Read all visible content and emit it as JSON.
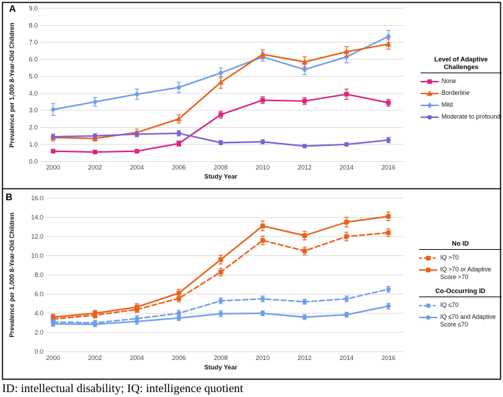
{
  "figure": {
    "panel_a_label": "A",
    "panel_b_label": "B",
    "footnote": "ID: intellectual disability; IQ: intelligence quotient"
  },
  "colors": {
    "grid": "#DBDBDB",
    "border": "#000000",
    "tick_text": "#474747",
    "axis_title": "#161616",
    "magenta": "#D92682",
    "orange": "#E8611A",
    "blue": "#6D9EEB",
    "purple": "#7B61D6"
  },
  "chart_data": [
    {
      "id": "panel-a",
      "type": "line",
      "title": "",
      "xlabel": "Study Year",
      "ylabel": "Prevalence per 1,000 8-Year-Old Children",
      "categories": [
        "2000",
        "2002",
        "2004",
        "2006",
        "2008",
        "2010",
        "2012",
        "2014",
        "2016"
      ],
      "ylim": [
        0.0,
        9.0
      ],
      "y_step": 1.0,
      "grid": true,
      "legend": {
        "position": "right",
        "groups": [
          {
            "title": "Level of Adaptive Challenges",
            "series": [
              0,
              1,
              2,
              3
            ]
          }
        ]
      },
      "series": [
        {
          "name": "None",
          "color": "#D92682",
          "marker": "square",
          "line": "solid",
          "values": [
            0.6,
            0.55,
            0.6,
            1.05,
            2.75,
            3.6,
            3.55,
            3.95,
            3.45
          ],
          "errors": [
            0.1,
            0.1,
            0.1,
            0.15,
            0.2,
            0.2,
            0.2,
            0.3,
            0.2
          ]
        },
        {
          "name": "Borderline",
          "color": "#E8611A",
          "marker": "triangle",
          "line": "solid",
          "values": [
            1.4,
            1.35,
            1.7,
            2.5,
            4.65,
            6.3,
            5.85,
            6.45,
            6.9
          ],
          "errors": [
            0.2,
            0.15,
            0.2,
            0.25,
            0.35,
            0.25,
            0.3,
            0.3,
            0.3
          ]
        },
        {
          "name": "Mild",
          "color": "#6D9EEB",
          "marker": "diamond",
          "line": "solid",
          "values": [
            3.05,
            3.5,
            3.95,
            4.35,
            5.2,
            6.15,
            5.4,
            6.15,
            7.35
          ],
          "errors": [
            0.35,
            0.25,
            0.3,
            0.3,
            0.3,
            0.25,
            0.3,
            0.35,
            0.35
          ]
        },
        {
          "name": "Moderate to profound",
          "color": "#7B61D6",
          "marker": "circle",
          "line": "solid",
          "values": [
            1.45,
            1.5,
            1.6,
            1.65,
            1.1,
            1.15,
            0.9,
            1.0,
            1.25
          ],
          "errors": [
            0.15,
            0.12,
            0.15,
            0.15,
            0.12,
            0.12,
            0.1,
            0.1,
            0.15
          ]
        }
      ]
    },
    {
      "id": "panel-b",
      "type": "line",
      "title": "",
      "xlabel": "Study Year",
      "ylabel": "Prevalence per 1,000 8-Year-Old Children",
      "categories": [
        "2000",
        "2002",
        "2004",
        "2006",
        "2008",
        "2010",
        "2012",
        "2014",
        "2016"
      ],
      "ylim": [
        0.0,
        16.0
      ],
      "y_step": 2.0,
      "grid": true,
      "legend": {
        "position": "right",
        "groups": [
          {
            "title": "No ID",
            "series": [
              0,
              1
            ]
          },
          {
            "title": "Co-Occurring ID",
            "series": [
              2,
              3
            ]
          }
        ]
      },
      "series": [
        {
          "name": "IQ >70",
          "color": "#E8611A",
          "marker": "square",
          "line": "dashed",
          "values": [
            3.4,
            3.8,
            4.4,
            5.55,
            8.3,
            11.6,
            10.5,
            12.0,
            12.4
          ],
          "errors": [
            0.3,
            0.3,
            0.3,
            0.35,
            0.4,
            0.45,
            0.4,
            0.45,
            0.4
          ]
        },
        {
          "name": "IQ >70 or Adaptive Score >70",
          "color": "#E8611A",
          "marker": "square",
          "line": "solid",
          "values": [
            3.6,
            4.0,
            4.65,
            6.1,
            9.6,
            13.1,
            12.1,
            13.5,
            14.1
          ],
          "errors": [
            0.3,
            0.3,
            0.35,
            0.4,
            0.45,
            0.5,
            0.45,
            0.5,
            0.45
          ]
        },
        {
          "name": "IQ ≤70",
          "color": "#6D9EEB",
          "marker": "circle",
          "line": "dashed",
          "values": [
            3.1,
            3.0,
            3.45,
            4.0,
            5.3,
            5.5,
            5.2,
            5.5,
            6.5
          ],
          "errors": [
            0.3,
            0.25,
            0.3,
            0.3,
            0.3,
            0.3,
            0.25,
            0.3,
            0.3
          ]
        },
        {
          "name": "IQ ≤70 and Adaptive Score ≤70",
          "color": "#6D9EEB",
          "marker": "circle",
          "line": "solid",
          "values": [
            2.9,
            2.85,
            3.15,
            3.5,
            3.95,
            4.0,
            3.6,
            3.85,
            4.75
          ],
          "errors": [
            0.25,
            0.25,
            0.3,
            0.25,
            0.3,
            0.25,
            0.25,
            0.25,
            0.3
          ]
        }
      ]
    }
  ]
}
